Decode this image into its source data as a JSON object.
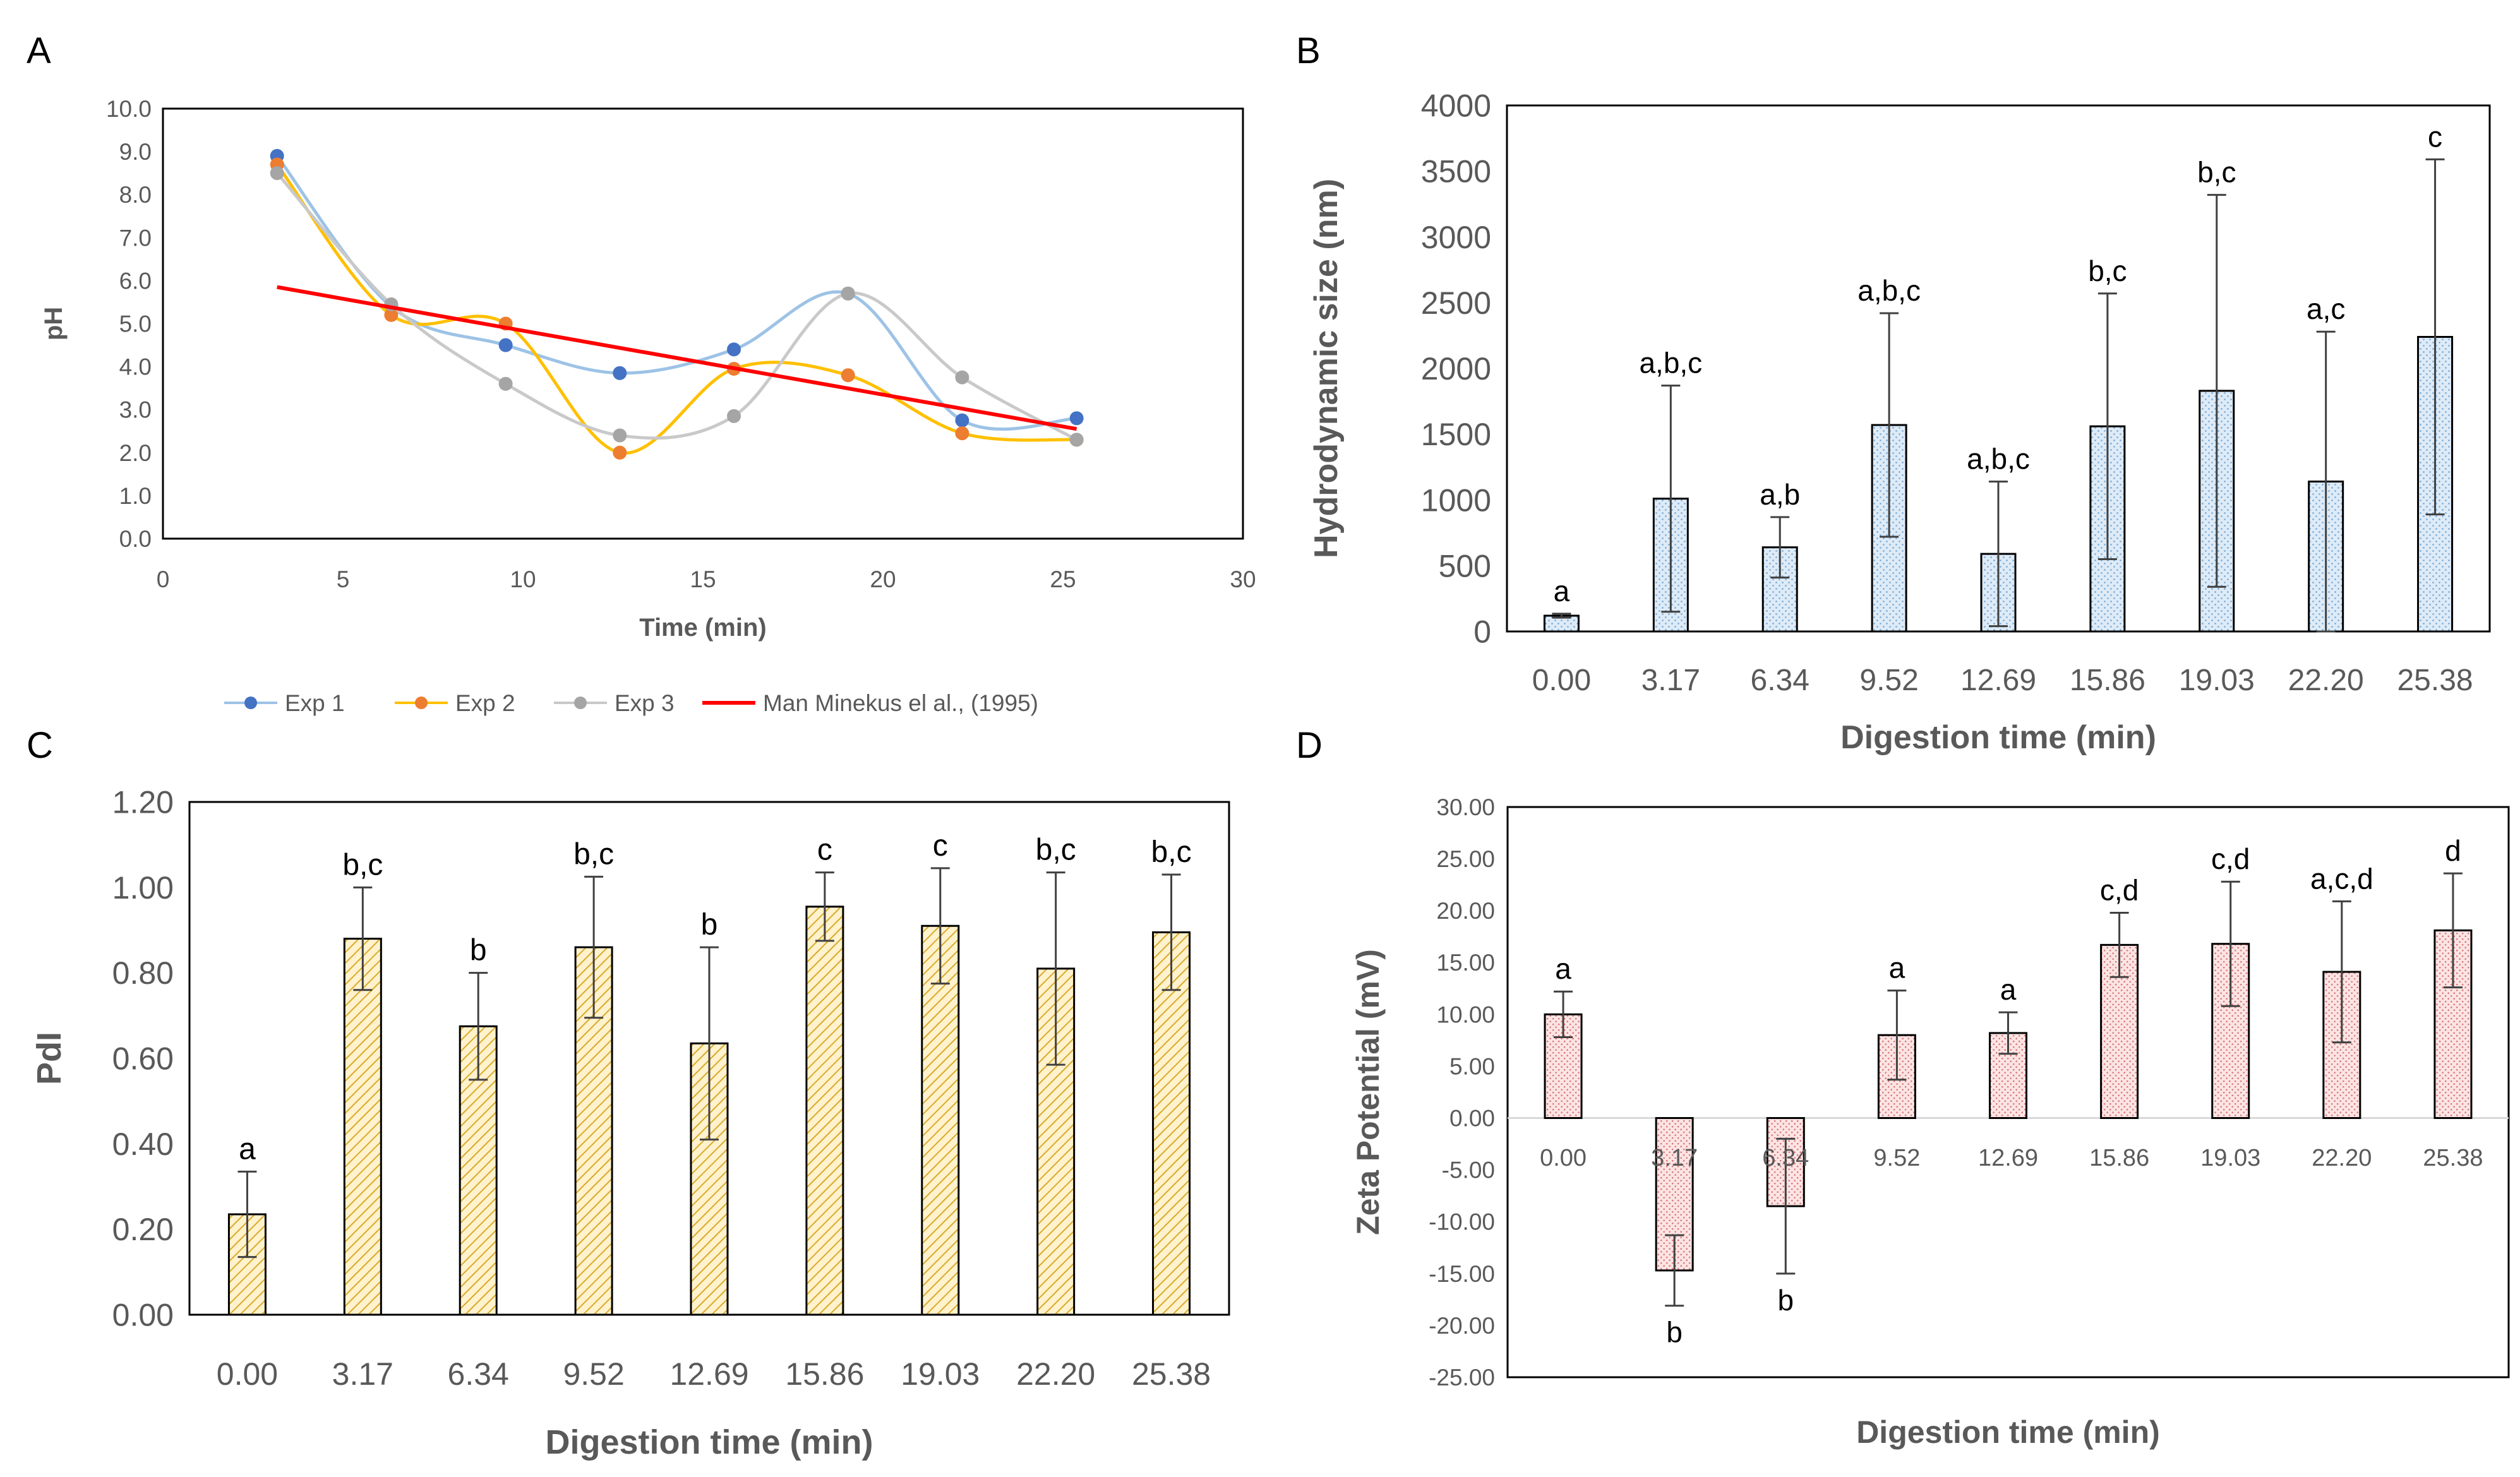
{
  "figure": {
    "panels": {
      "A": "A",
      "B": "B",
      "C": "C",
      "D": "D"
    }
  },
  "chart_data": [
    {
      "panel": "A",
      "type": "line",
      "title": "",
      "xlabel": "Time (min)",
      "ylabel": "pH",
      "xlim": [
        0,
        30
      ],
      "ylim": [
        0,
        10
      ],
      "xticks": [
        0,
        5,
        10,
        15,
        20,
        25,
        30
      ],
      "yticks": [
        0,
        1,
        2,
        3,
        4,
        5,
        6,
        7,
        8,
        9,
        10
      ],
      "x": [
        3.17,
        6.34,
        9.52,
        12.69,
        15.86,
        19.03,
        22.2,
        25.38
      ],
      "series": [
        {
          "name": "Exp 1",
          "color": "#4472C4",
          "line_color": "#9DC3E6",
          "values": [
            8.9,
            5.4,
            4.5,
            3.85,
            4.4,
            5.7,
            2.75,
            2.8
          ]
        },
        {
          "name": "Exp 2",
          "color": "#ED7D31",
          "line_color": "#FFC000",
          "values": [
            8.7,
            5.2,
            5.0,
            2.0,
            3.95,
            3.8,
            2.45,
            2.3
          ]
        },
        {
          "name": "Exp 3",
          "color": "#A5A5A5",
          "line_color": "#C9C9C9",
          "values": [
            8.5,
            5.45,
            3.6,
            2.4,
            2.85,
            5.7,
            3.75,
            2.3
          ]
        }
      ],
      "reference_line": {
        "name": "Man Minekus el al., (1995)",
        "color": "#FF0000",
        "x": [
          3.17,
          25.38
        ],
        "values": [
          5.85,
          2.55
        ]
      },
      "legend_position": "bottom"
    },
    {
      "panel": "B",
      "type": "bar",
      "xlabel": "Digestion time (min)",
      "ylabel": "Hydrodynamic size (nm)",
      "ylim": [
        0,
        4000
      ],
      "yticks": [
        0,
        500,
        1000,
        1500,
        2000,
        2500,
        3000,
        3500,
        4000
      ],
      "categories": [
        "0.00",
        "3.17",
        "6.34",
        "9.52",
        "12.69",
        "15.86",
        "19.03",
        "22.20",
        "25.38"
      ],
      "values": [
        120,
        1010,
        640,
        1570,
        590,
        1560,
        1830,
        1140,
        2240
      ],
      "errors": [
        15,
        860,
        230,
        850,
        550,
        1010,
        1490,
        1140,
        1350
      ],
      "labels": [
        "a",
        "a,b,c",
        "a,b",
        "a,b,c",
        "a,b,c",
        "b,c",
        "b,c",
        "a,c",
        "c"
      ],
      "fill": "#DEEBF7",
      "dots": "#9DC3E6"
    },
    {
      "panel": "C",
      "type": "bar",
      "xlabel": "Digestion time (min)",
      "ylabel": "PdI",
      "ylim": [
        0,
        1.2
      ],
      "yticks": [
        "0.00",
        "0.20",
        "0.40",
        "0.60",
        "0.80",
        "1.00",
        "1.20"
      ],
      "categories": [
        "0.00",
        "3.17",
        "6.34",
        "9.52",
        "12.69",
        "15.86",
        "19.03",
        "22.20",
        "25.38"
      ],
      "values": [
        0.235,
        0.88,
        0.675,
        0.86,
        0.635,
        0.955,
        0.91,
        0.81,
        0.895
      ],
      "errors": [
        0.1,
        0.12,
        0.125,
        0.165,
        0.225,
        0.08,
        0.135,
        0.225,
        0.135
      ],
      "labels": [
        "a",
        "b,c",
        "b",
        "b,c",
        "b",
        "c",
        "c",
        "b,c",
        "b,c"
      ],
      "fill": "#FFF2CC",
      "dots": "#E2B53D"
    },
    {
      "panel": "D",
      "type": "bar",
      "xlabel": "Digestion time (min)",
      "ylabel": "Zeta Potential (mV)",
      "ylim": [
        -25,
        30
      ],
      "yticks": [
        "-25.00",
        "-20.00",
        "-15.00",
        "-10.00",
        "-5.00",
        "0.00",
        "5.00",
        "10.00",
        "15.00",
        "20.00",
        "25.00",
        "30.00"
      ],
      "categories": [
        "0.00",
        "3.17",
        "6.34",
        "9.52",
        "12.69",
        "15.86",
        "19.03",
        "22.20",
        "25.38"
      ],
      "values": [
        10.0,
        -14.7,
        -8.5,
        8.0,
        8.2,
        16.7,
        16.8,
        14.1,
        18.1
      ],
      "errors": [
        2.2,
        3.4,
        6.5,
        4.3,
        2.0,
        3.1,
        6.0,
        6.8,
        5.5
      ],
      "labels": [
        "a",
        "b",
        "b",
        "a",
        "a",
        "c,d",
        "c,d",
        "a,c,d",
        "d"
      ],
      "fill": "#FCE4E4",
      "dots": "#E59B9B"
    }
  ]
}
